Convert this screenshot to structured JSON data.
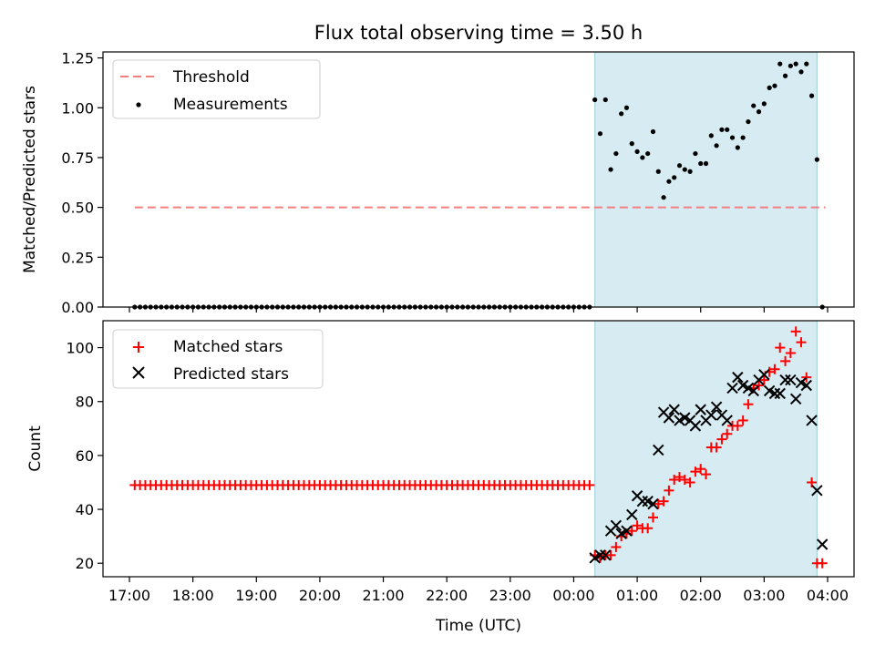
{
  "title": "Flux total observing time = 3.50 h",
  "chart_data": [
    {
      "type": "scatter",
      "panel": "top",
      "ylabel": "Matched/Predicted stars",
      "ylim": [
        0,
        1.28
      ],
      "yticks": [
        0,
        0.25,
        0.5,
        0.75,
        1.0,
        1.25
      ],
      "ytick_labels": [
        "0.00",
        "0.25",
        "0.50",
        "0.75",
        "1.00",
        "1.25"
      ],
      "xlim": [
        "16:35",
        "04:25"
      ],
      "legend_position": "upper-left",
      "highlight_span": {
        "start": "00:20",
        "end": "03:50",
        "color": "#add8e6"
      },
      "threshold": {
        "name": "Threshold",
        "value": 0.5,
        "x_start": "17:05",
        "x_end": "03:58",
        "color": "#f08080",
        "style": "dashed"
      },
      "series": [
        {
          "name": "Measurements",
          "marker": "dot",
          "color": "#000000",
          "x": [
            "17:05",
            "17:10",
            "17:15",
            "17:20",
            "17:25",
            "17:30",
            "17:35",
            "17:40",
            "17:45",
            "17:50",
            "17:55",
            "18:00",
            "18:05",
            "18:10",
            "18:15",
            "18:20",
            "18:25",
            "18:30",
            "18:35",
            "18:40",
            "18:45",
            "18:50",
            "18:55",
            "19:00",
            "19:05",
            "19:10",
            "19:15",
            "19:20",
            "19:25",
            "19:30",
            "19:35",
            "19:40",
            "19:45",
            "19:50",
            "19:55",
            "20:00",
            "20:05",
            "20:10",
            "20:15",
            "20:20",
            "20:25",
            "20:30",
            "20:35",
            "20:40",
            "20:45",
            "20:50",
            "20:55",
            "21:00",
            "21:05",
            "21:10",
            "21:15",
            "21:20",
            "21:25",
            "21:30",
            "21:35",
            "21:40",
            "21:45",
            "21:50",
            "21:55",
            "22:00",
            "22:05",
            "22:10",
            "22:15",
            "22:20",
            "22:25",
            "22:30",
            "22:35",
            "22:40",
            "22:45",
            "22:50",
            "22:55",
            "23:00",
            "23:05",
            "23:10",
            "23:15",
            "23:20",
            "23:25",
            "23:30",
            "23:35",
            "23:40",
            "23:45",
            "23:50",
            "23:55",
            "00:00",
            "00:05",
            "00:10",
            "00:15",
            "00:20",
            "00:25",
            "00:30",
            "00:35",
            "00:40",
            "00:45",
            "00:50",
            "00:55",
            "01:00",
            "01:05",
            "01:10",
            "01:15",
            "01:20",
            "01:25",
            "01:30",
            "01:35",
            "01:40",
            "01:45",
            "01:50",
            "01:55",
            "02:00",
            "02:05",
            "02:10",
            "02:15",
            "02:20",
            "02:25",
            "02:30",
            "02:35",
            "02:40",
            "02:45",
            "02:50",
            "02:55",
            "03:00",
            "03:05",
            "03:10",
            "03:15",
            "03:20",
            "03:25",
            "03:30",
            "03:35",
            "03:40",
            "03:45",
            "03:50",
            "03:55"
          ],
          "y": [
            0,
            0,
            0,
            0,
            0,
            0,
            0,
            0,
            0,
            0,
            0,
            0,
            0,
            0,
            0,
            0,
            0,
            0,
            0,
            0,
            0,
            0,
            0,
            0,
            0,
            0,
            0,
            0,
            0,
            0,
            0,
            0,
            0,
            0,
            0,
            0,
            0,
            0,
            0,
            0,
            0,
            0,
            0,
            0,
            0,
            0,
            0,
            0,
            0,
            0,
            0,
            0,
            0,
            0,
            0,
            0,
            0,
            0,
            0,
            0,
            0,
            0,
            0,
            0,
            0,
            0,
            0,
            0,
            0,
            0,
            0,
            0,
            0,
            0,
            0,
            0,
            0,
            0,
            0,
            0,
            0,
            0,
            0,
            0,
            0,
            0,
            0,
            1.04,
            0.87,
            1.04,
            0.69,
            0.77,
            0.97,
            1.0,
            0.82,
            0.78,
            0.75,
            0.77,
            0.88,
            0.68,
            0.55,
            0.63,
            0.65,
            0.71,
            0.69,
            0.68,
            0.77,
            0.72,
            0.72,
            0.86,
            0.81,
            0.89,
            0.89,
            0.85,
            0.8,
            0.85,
            0.93,
            1.01,
            0.98,
            1.02,
            1.1,
            1.11,
            1.22,
            1.16,
            1.21,
            1.22,
            1.18,
            1.22,
            1.06,
            0.74,
            0
          ]
        }
      ]
    },
    {
      "type": "scatter",
      "panel": "bottom",
      "xlabel": "Time (UTC)",
      "ylabel": "Count",
      "ylim": [
        15,
        110
      ],
      "yticks": [
        20,
        40,
        60,
        80,
        100
      ],
      "ytick_labels": [
        "20",
        "40",
        "60",
        "80",
        "100"
      ],
      "xlim": [
        "16:35",
        "04:25"
      ],
      "xticks": [
        "17:00",
        "18:00",
        "19:00",
        "20:00",
        "21:00",
        "22:00",
        "23:00",
        "00:00",
        "01:00",
        "02:00",
        "03:00",
        "04:00"
      ],
      "xtick_labels": [
        "17:00",
        "18:00",
        "19:00",
        "20:00",
        "21:00",
        "22:00",
        "23:00",
        "00:00",
        "01:00",
        "02:00",
        "03:00",
        "04:00"
      ],
      "legend_position": "upper-left",
      "highlight_span": {
        "start": "00:20",
        "end": "03:50",
        "color": "#add8e6"
      },
      "series": [
        {
          "name": "Matched stars",
          "marker": "plus",
          "color": "#ff0000",
          "x": [
            "17:05",
            "17:10",
            "17:15",
            "17:20",
            "17:25",
            "17:30",
            "17:35",
            "17:40",
            "17:45",
            "17:50",
            "17:55",
            "18:00",
            "18:05",
            "18:10",
            "18:15",
            "18:20",
            "18:25",
            "18:30",
            "18:35",
            "18:40",
            "18:45",
            "18:50",
            "18:55",
            "19:00",
            "19:05",
            "19:10",
            "19:15",
            "19:20",
            "19:25",
            "19:30",
            "19:35",
            "19:40",
            "19:45",
            "19:50",
            "19:55",
            "20:00",
            "20:05",
            "20:10",
            "20:15",
            "20:20",
            "20:25",
            "20:30",
            "20:35",
            "20:40",
            "20:45",
            "20:50",
            "20:55",
            "21:00",
            "21:05",
            "21:10",
            "21:15",
            "21:20",
            "21:25",
            "21:30",
            "21:35",
            "21:40",
            "21:45",
            "21:50",
            "21:55",
            "22:00",
            "22:05",
            "22:10",
            "22:15",
            "22:20",
            "22:25",
            "22:30",
            "22:35",
            "22:40",
            "22:45",
            "22:50",
            "22:55",
            "23:00",
            "23:05",
            "23:10",
            "23:15",
            "23:20",
            "23:25",
            "23:30",
            "23:35",
            "23:40",
            "23:45",
            "23:50",
            "23:55",
            "00:00",
            "00:05",
            "00:10",
            "00:15",
            "00:20",
            "00:25",
            "00:30",
            "00:35",
            "00:40",
            "00:45",
            "00:50",
            "00:55",
            "01:00",
            "01:05",
            "01:10",
            "01:15",
            "01:20",
            "01:25",
            "01:30",
            "01:35",
            "01:40",
            "01:45",
            "01:50",
            "01:55",
            "02:00",
            "02:05",
            "02:10",
            "02:15",
            "02:20",
            "02:25",
            "02:30",
            "02:35",
            "02:40",
            "02:45",
            "02:50",
            "02:55",
            "03:00",
            "03:05",
            "03:10",
            "03:15",
            "03:20",
            "03:25",
            "03:30",
            "03:35",
            "03:40",
            "03:45",
            "03:50",
            "03:55"
          ],
          "y": [
            49,
            49,
            49,
            49,
            49,
            49,
            49,
            49,
            49,
            49,
            49,
            49,
            49,
            49,
            49,
            49,
            49,
            49,
            49,
            49,
            49,
            49,
            49,
            49,
            49,
            49,
            49,
            49,
            49,
            49,
            49,
            49,
            49,
            49,
            49,
            49,
            49,
            49,
            49,
            49,
            49,
            49,
            49,
            49,
            49,
            49,
            49,
            49,
            49,
            49,
            49,
            49,
            49,
            49,
            49,
            49,
            49,
            49,
            49,
            49,
            49,
            49,
            49,
            49,
            49,
            49,
            49,
            49,
            49,
            49,
            49,
            49,
            49,
            49,
            49,
            49,
            49,
            49,
            49,
            49,
            49,
            49,
            49,
            49,
            49,
            49,
            49,
            23,
            22,
            23,
            23,
            26,
            30,
            31,
            32,
            34,
            33,
            33,
            37,
            42,
            43,
            47,
            51,
            52,
            51,
            50,
            54,
            55,
            53,
            63,
            63,
            66,
            68,
            71,
            71,
            73,
            79,
            85,
            86,
            88,
            91,
            92,
            100,
            95,
            98,
            106,
            102,
            89,
            50,
            20,
            20
          ]
        },
        {
          "name": "Predicted stars",
          "marker": "x",
          "color": "#000000",
          "x": [
            "00:20",
            "00:25",
            "00:30",
            "00:35",
            "00:40",
            "00:45",
            "00:50",
            "00:55",
            "01:00",
            "01:05",
            "01:10",
            "01:15",
            "01:20",
            "01:25",
            "01:30",
            "01:35",
            "01:40",
            "01:45",
            "01:50",
            "01:55",
            "02:00",
            "02:05",
            "02:10",
            "02:15",
            "02:20",
            "02:25",
            "02:30",
            "02:35",
            "02:40",
            "02:45",
            "02:50",
            "02:55",
            "03:00",
            "03:05",
            "03:10",
            "03:15",
            "03:20",
            "03:25",
            "03:30",
            "03:35",
            "03:40",
            "03:45",
            "03:50",
            "03:55"
          ],
          "y": [
            22,
            23,
            23,
            32,
            34,
            31,
            32,
            38,
            45,
            43,
            43,
            42,
            62,
            76,
            74,
            77,
            73,
            74,
            73,
            71,
            77,
            73,
            75,
            78,
            75,
            73,
            85,
            89,
            86,
            85,
            84,
            88,
            90,
            84,
            83,
            83,
            88,
            88,
            81,
            87,
            86,
            73,
            47,
            27
          ]
        }
      ]
    }
  ]
}
